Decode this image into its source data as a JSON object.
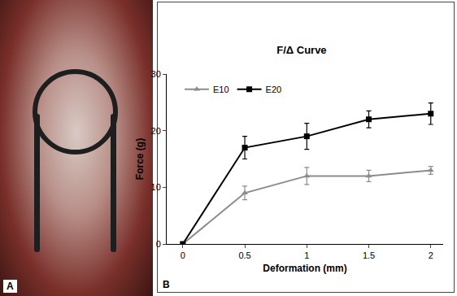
{
  "chart_data": {
    "type": "line",
    "title": "F/Δ Curve",
    "x_label": "Deformation (mm)",
    "y_label": "Force (g)",
    "x": [
      0,
      0.5,
      1,
      1.5,
      2
    ],
    "series": [
      {
        "name": "E10",
        "color": "#8c8c8c",
        "marker": "triangle-up",
        "values": [
          0,
          9,
          12,
          12,
          13
        ],
        "errors": [
          0,
          1.2,
          1.5,
          1,
          0.7
        ]
      },
      {
        "name": "E20",
        "color": "#000000",
        "marker": "square",
        "values": [
          0,
          17,
          19,
          22,
          23
        ],
        "errors": [
          0,
          2,
          2.3,
          1.5,
          1.9
        ]
      }
    ],
    "xlim": [
      -0.13,
      2.1
    ],
    "ylim": [
      0,
      30
    ],
    "xticks": [
      0,
      0.5,
      1,
      1.5,
      2
    ],
    "yticks": [
      0,
      10,
      20,
      30
    ],
    "grid": false,
    "legend": "upper left",
    "annotations": [
      "A",
      "B"
    ]
  }
}
